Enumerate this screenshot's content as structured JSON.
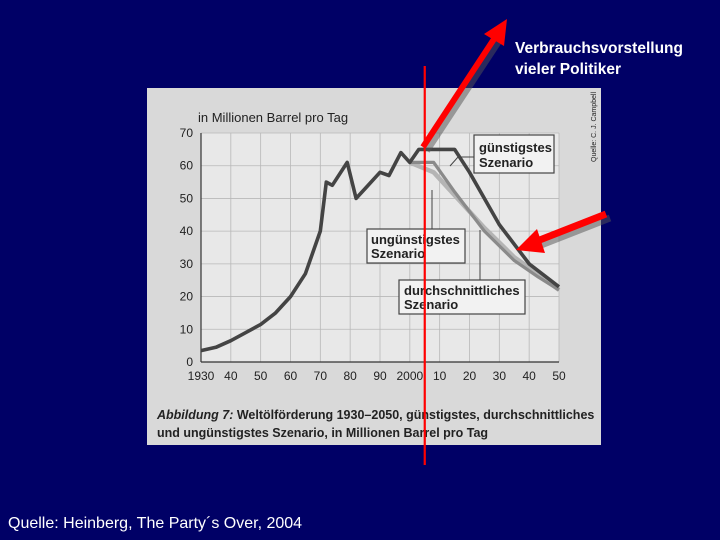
{
  "annotation": {
    "line1": "Verbrauchsvorstellung",
    "line2": "vieler Politiker"
  },
  "source": "Quelle: Heinberg, The Party´s Over, 2004",
  "credit": "Quelle: C. J. Campbell",
  "caption": {
    "line1_bold": "Abbildung 7:",
    "line1_rest": " Weltölförderung 1930–2050, günstigstes, durchschnittliches",
    "line2": "und ungünstigstes Szenario, in Millionen Barrel pro Tag"
  },
  "colors": {
    "background": "#000066",
    "panel": "#d9d9d9",
    "line_best": "#444444",
    "line_avg": "#8a8a8a",
    "line_worst": "#b4b4b4",
    "marker": "#ff0000"
  },
  "chart_data": {
    "type": "line",
    "ylabel": "in Millionen Barrel pro Tag",
    "ylim": [
      0,
      70
    ],
    "xlim": [
      1930,
      2050
    ],
    "yticks": [
      0,
      10,
      20,
      30,
      40,
      50,
      60,
      70
    ],
    "xticks": [
      "1930",
      "40",
      "50",
      "60",
      "70",
      "80",
      "90",
      "2000",
      "10",
      "20",
      "30",
      "40",
      "50"
    ],
    "xtick_years": [
      1930,
      1940,
      1950,
      1960,
      1970,
      1980,
      1990,
      2000,
      2010,
      2020,
      2030,
      2040,
      2050
    ],
    "grid": true,
    "marker_year": 2005,
    "series": [
      {
        "name": "günstigstes Szenario",
        "points": [
          [
            1930,
            3.5
          ],
          [
            1935,
            4.5
          ],
          [
            1940,
            6.5
          ],
          [
            1945,
            9
          ],
          [
            1950,
            11.5
          ],
          [
            1955,
            15
          ],
          [
            1960,
            20
          ],
          [
            1965,
            27
          ],
          [
            1970,
            40
          ],
          [
            1972,
            55
          ],
          [
            1974,
            54
          ],
          [
            1979,
            61
          ],
          [
            1982,
            50
          ],
          [
            1985,
            53
          ],
          [
            1990,
            58
          ],
          [
            1993,
            57
          ],
          [
            1997,
            64
          ],
          [
            2000,
            61
          ],
          [
            2003,
            65
          ],
          [
            2005,
            65
          ],
          [
            2015,
            65
          ],
          [
            2020,
            58
          ],
          [
            2030,
            42
          ],
          [
            2040,
            30
          ],
          [
            2050,
            23
          ]
        ]
      },
      {
        "name": "durchschnittliches Szenario",
        "points": [
          [
            2000,
            61
          ],
          [
            2003,
            61
          ],
          [
            2008,
            61
          ],
          [
            2015,
            52
          ],
          [
            2025,
            40
          ],
          [
            2035,
            31
          ],
          [
            2043,
            26
          ],
          [
            2050,
            22
          ]
        ]
      },
      {
        "name": "ungünstigstes Szenario",
        "points": [
          [
            2000,
            61
          ],
          [
            2008,
            58
          ],
          [
            2015,
            51
          ],
          [
            2025,
            41
          ],
          [
            2035,
            32
          ],
          [
            2043,
            27
          ],
          [
            2050,
            22
          ]
        ]
      }
    ],
    "labels": {
      "best_1": "günstigstes",
      "best_2": "Szenario",
      "worst_1": "ungünstigstes",
      "worst_2": "Szenario",
      "avg_1": "durchschnittliches",
      "avg_2": "Szenario"
    }
  }
}
